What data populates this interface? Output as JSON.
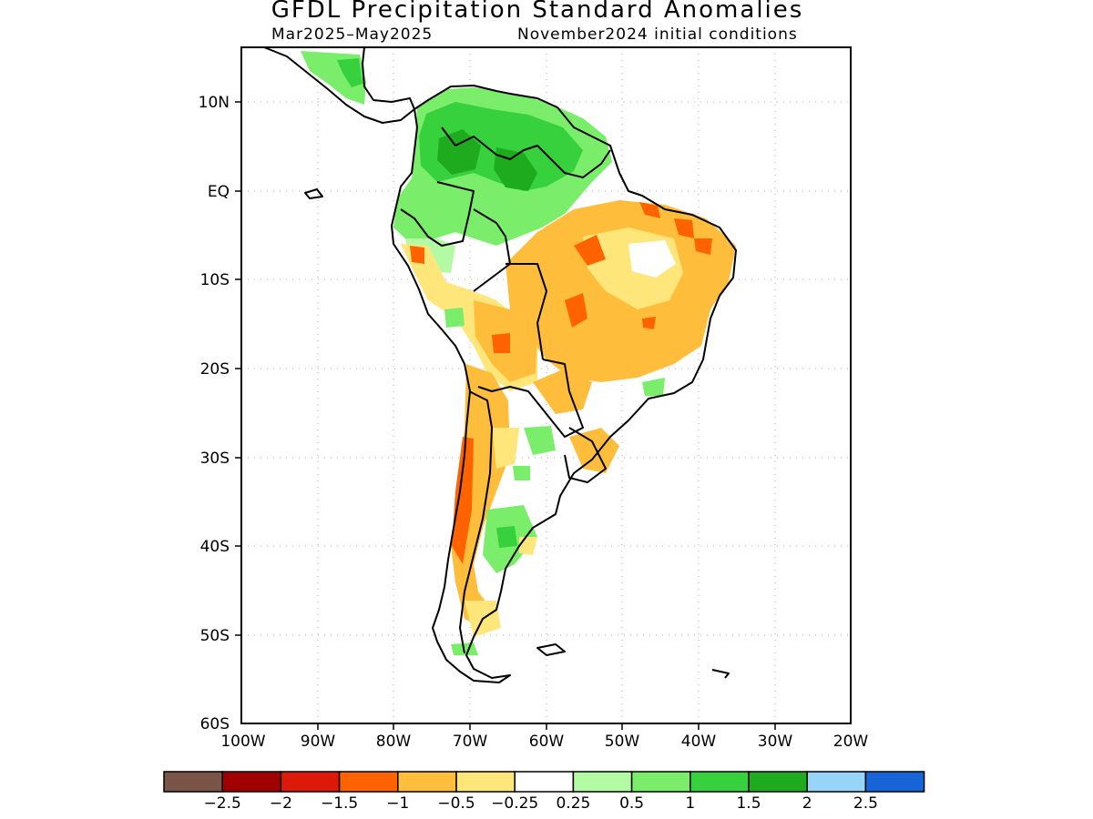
{
  "title": "GFDL Precipitation Standard Anomalies",
  "subtitle_left": "Mar2025–May2025",
  "subtitle_right": "November2024 initial conditions",
  "lat_labels": [
    "10N",
    "EQ",
    "10S",
    "20S",
    "30S",
    "40S",
    "50S",
    "60S"
  ],
  "lon_labels": [
    "100W",
    "90W",
    "80W",
    "70W",
    "60W",
    "50W",
    "40W",
    "30W",
    "20W"
  ],
  "colorbar": {
    "colors": [
      "#7a5547",
      "#a00000",
      "#dd1a0a",
      "#fe6300",
      "#ffbd3c",
      "#ffe67a",
      "#ffffff",
      "#b4f9a4",
      "#7aee6a",
      "#36d13c",
      "#1fab1e",
      "#98d3f8",
      "#1565d8"
    ],
    "labels": [
      "−2.5",
      "−2",
      "−1.5",
      "−1",
      "−0.5",
      "−0.25",
      "0.25",
      "0.5",
      "1",
      "1.5",
      "2",
      "2.5"
    ]
  }
}
